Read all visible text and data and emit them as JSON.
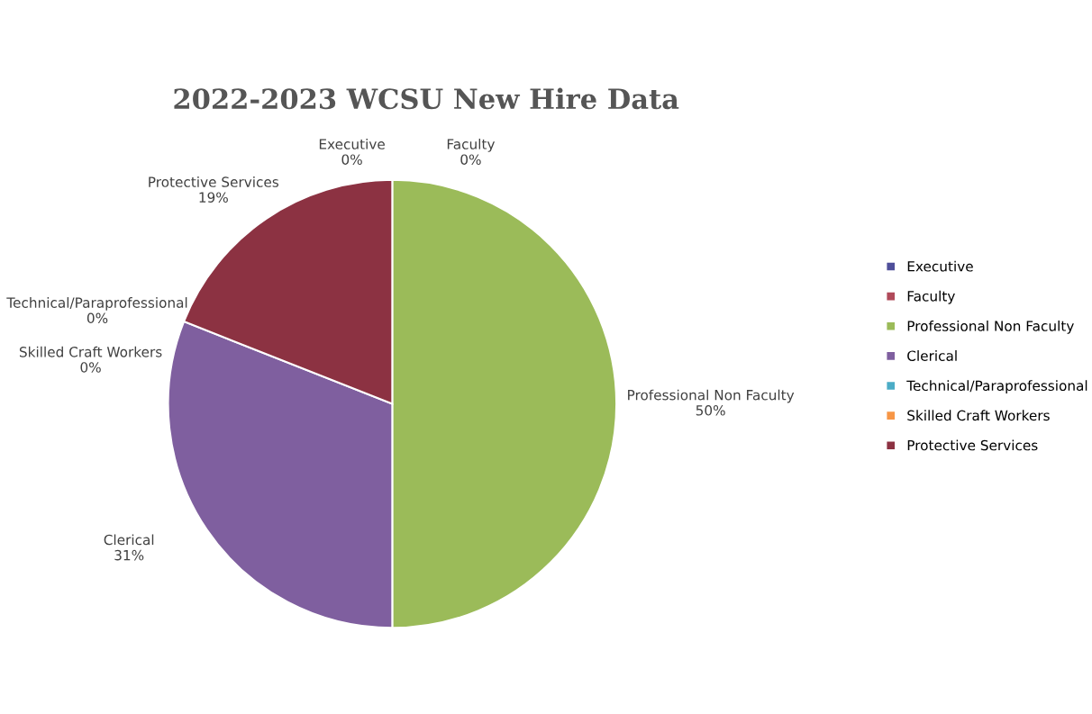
{
  "chart_data": {
    "type": "pie",
    "title": "2022-2023 WCSU New Hire Data",
    "categories": [
      "Executive",
      "Faculty",
      "Professional Non Faculty",
      "Clerical",
      "Technical/Paraprofessional",
      "Skilled Craft Workers",
      "Protective Services"
    ],
    "values": [
      0,
      0,
      50,
      31,
      0,
      0,
      19
    ],
    "colors": [
      "#4f4f9a",
      "#b04a5a",
      "#9bbb59",
      "#7f5f9f",
      "#4bacc6",
      "#f79646",
      "#8c3242"
    ],
    "value_labels": [
      "0%",
      "0%",
      "50%",
      "31%",
      "0%",
      "0%",
      "19%"
    ],
    "legend": "right"
  }
}
